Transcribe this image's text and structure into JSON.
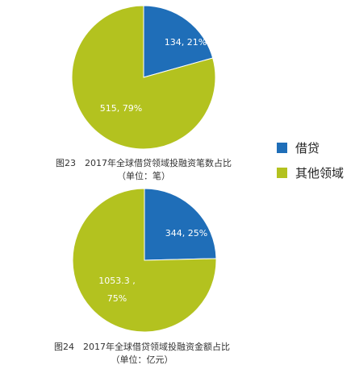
{
  "colors": {
    "lending": "#1f6eb8",
    "other": "#b3c21f"
  },
  "legend": {
    "items": [
      {
        "label": "借贷",
        "color": "#1f6eb8"
      },
      {
        "label": "其他领域",
        "color": "#b3c21f"
      }
    ]
  },
  "chart_data": [
    {
      "type": "pie",
      "caption_line1": "图23　2017年全球借贷领域投融资笔数占比",
      "caption_line2": "（单位：笔）",
      "slices": [
        {
          "category": "借贷",
          "value": 134,
          "percent": 21,
          "label_lines": [
            "134, 21%"
          ],
          "color": "#1f6eb8"
        },
        {
          "category": "其他领域",
          "value": 515,
          "percent": 79,
          "label_lines": [
            "515, 79%"
          ],
          "color": "#b3c21f"
        }
      ]
    },
    {
      "type": "pie",
      "caption_line1": "图24　2017年全球借贷领域投融资金额占比",
      "caption_line2": "（单位：亿元）",
      "slices": [
        {
          "category": "借贷",
          "value": 344,
          "percent": 25,
          "label_lines": [
            "344, 25%"
          ],
          "color": "#1f6eb8"
        },
        {
          "category": "其他领域",
          "value": 1053.3,
          "percent": 75,
          "label_lines": [
            "1053.3 ,",
            "75%"
          ],
          "color": "#b3c21f"
        }
      ]
    }
  ]
}
